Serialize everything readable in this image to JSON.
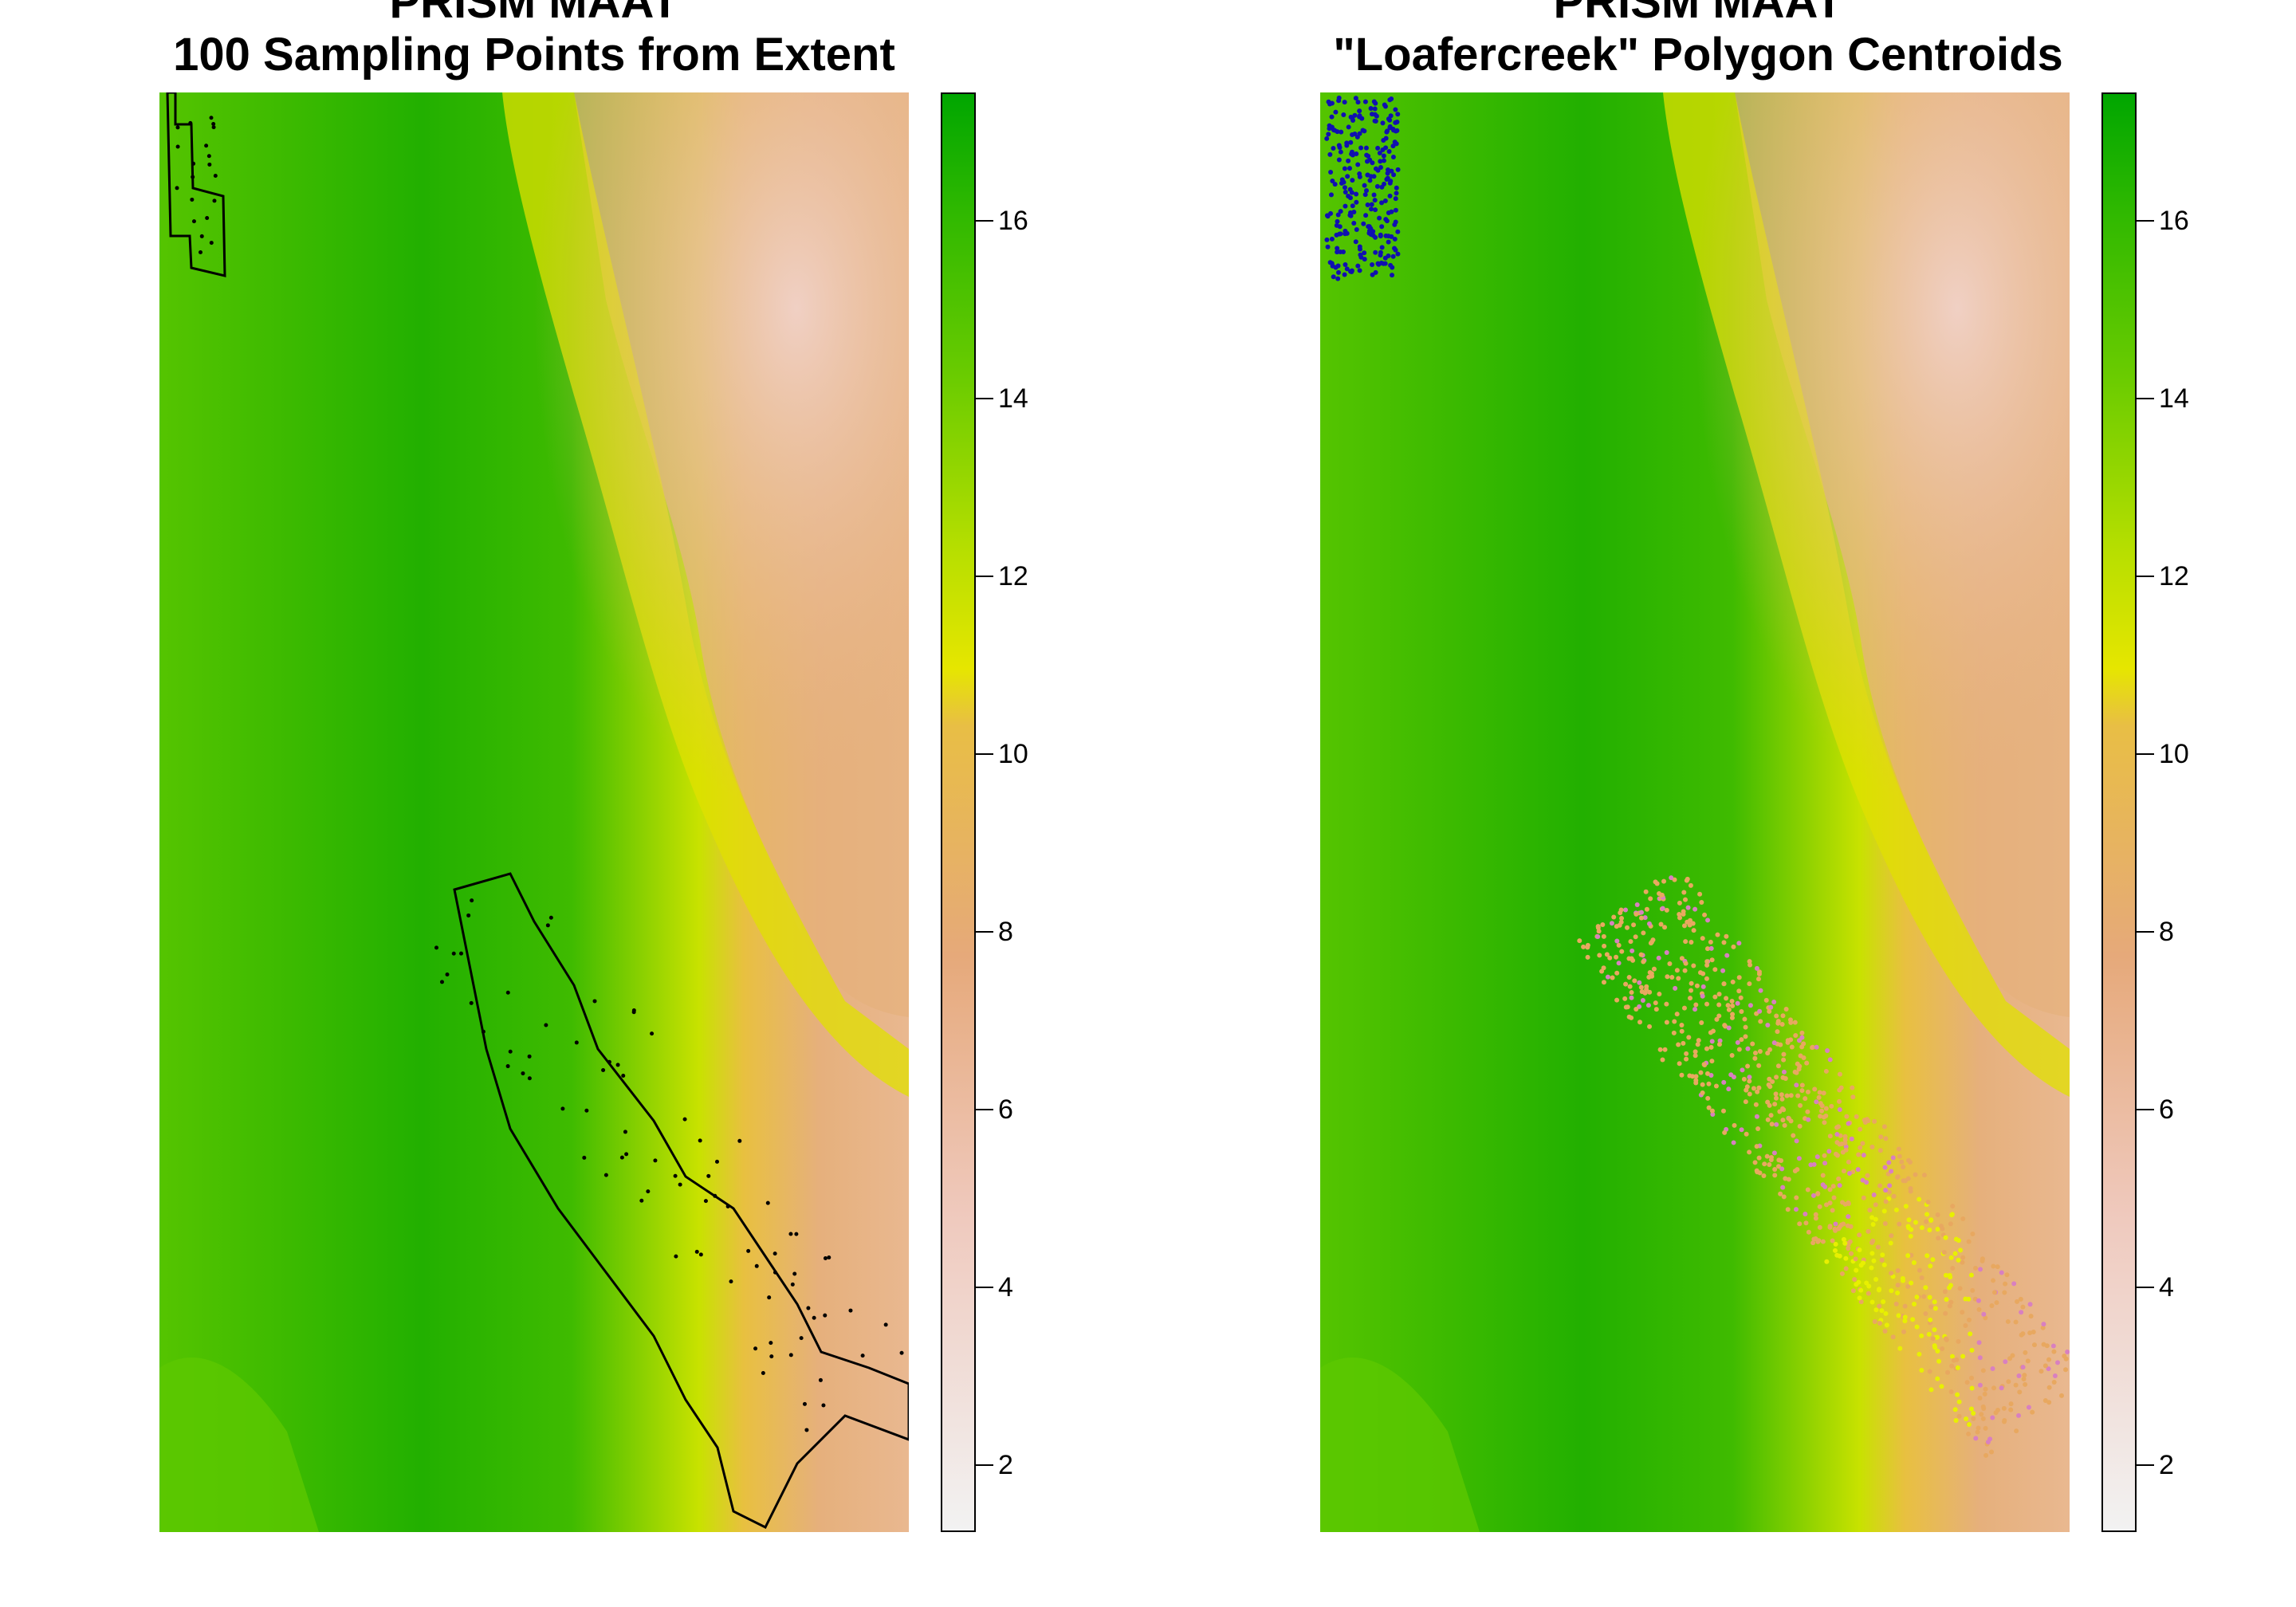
{
  "panels": [
    {
      "title_line1": "PRISM MAAT",
      "title_line2": "100 Sampling Points from Extent",
      "legend_ticks": [
        "2",
        "4",
        "6",
        "8",
        "10",
        "12",
        "14",
        "16"
      ]
    },
    {
      "title_line1": "PRISM MAAT",
      "title_line2": "\"Loafercreek\" Polygon Centroids",
      "legend_ticks": [
        "2",
        "4",
        "6",
        "8",
        "10",
        "12",
        "14",
        "16"
      ]
    }
  ],
  "colors": {
    "legend_low": "#f2f2f2",
    "legend_mid_low": "#e6a97a",
    "legend_mid": "#e6e600",
    "legend_high": "#00a600",
    "outline": "#000000",
    "centroid_north": "#1010b0",
    "centroid_warm": "#e8a860",
    "centroid_pink": "#d880c0",
    "centroid_yellow": "#e8f000"
  },
  "legend_range": [
    1.3,
    17.5
  ]
}
